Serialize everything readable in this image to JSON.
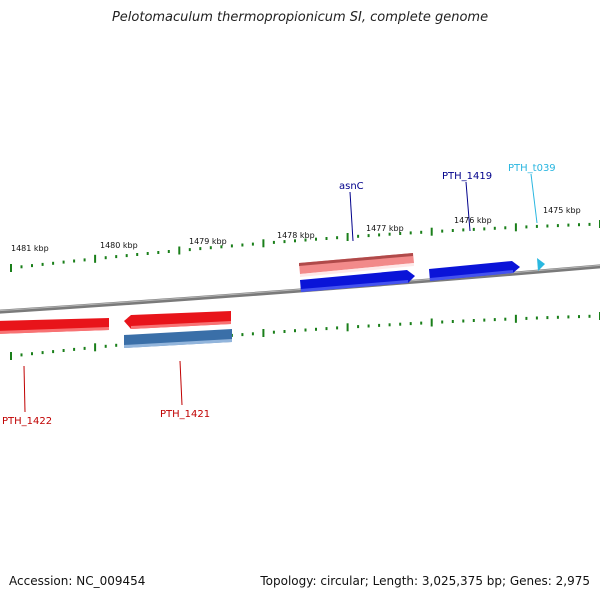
{
  "title": "Pelotomaculum thermopropionicum SI, complete genome",
  "footer": {
    "accession": "Accession: NC_009454",
    "summary": "Topology: circular; Length: 3,025,375 bp; Genes: 2,975"
  },
  "colors": {
    "backbone": "#808080",
    "tick": "#1a7f1a",
    "red": "#e8141a",
    "pink": "#f28a8a",
    "blue": "#0a14d8",
    "steelblue": "#3a6fa8",
    "cyan": "#2ab8e0",
    "label_red": "#c00000",
    "label_blue": "#00008b",
    "label_cyan": "#29b6e0"
  },
  "scale_labels": [
    {
      "text": "1481 kbp"
    },
    {
      "text": "1480 kbp"
    },
    {
      "text": "1479 kbp"
    },
    {
      "text": "1478 kbp"
    },
    {
      "text": "1477 kbp"
    },
    {
      "text": "1476 kbp"
    },
    {
      "text": "1475 kbp"
    }
  ],
  "gene_labels": [
    {
      "text": "asnC",
      "color": "label_blue"
    },
    {
      "text": "PTH_1419",
      "color": "label_blue"
    },
    {
      "text": "PTH_t039",
      "color": "label_cyan"
    },
    {
      "text": "PTH_1422",
      "color": "label_red"
    },
    {
      "text": "PTH_1421",
      "color": "label_red"
    }
  ]
}
